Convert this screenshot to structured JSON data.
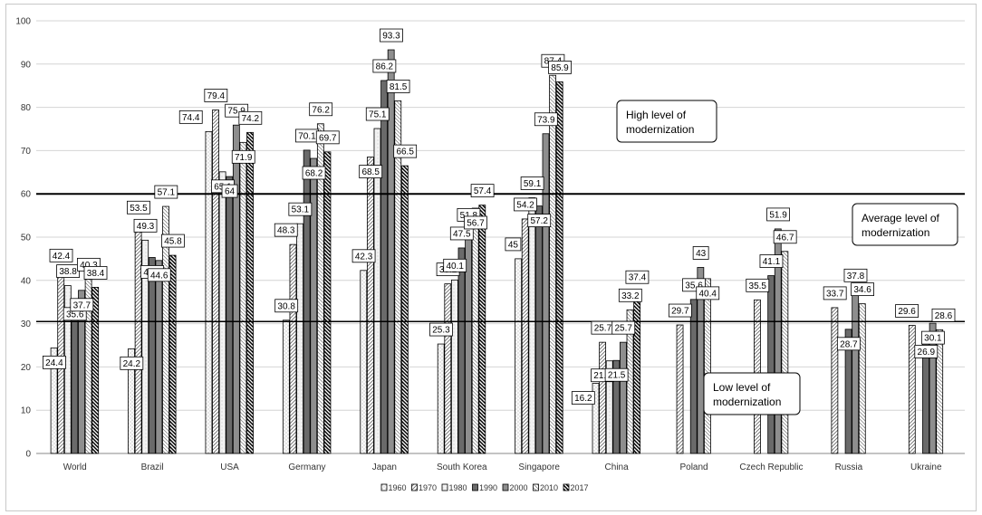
{
  "chart_data": {
    "type": "bar",
    "categories": [
      "World",
      "Brazil",
      "USA",
      "Germany",
      "Japan",
      "South Korea",
      "Singapore",
      "China",
      "Poland",
      "Czech Republic",
      "Russia",
      "Ukraine"
    ],
    "series": [
      {
        "name": "1960",
        "values": [
          24.4,
          24.2,
          74.4,
          30.8,
          42.3,
          25.3,
          45,
          16.2,
          null,
          null,
          null,
          null
        ]
      },
      {
        "name": "1970",
        "values": [
          42.4,
          53.5,
          79.4,
          48.3,
          68.5,
          39.2,
          54.2,
          25.7,
          29.7,
          35.5,
          33.7,
          29.6
        ]
      },
      {
        "name": "1980",
        "values": [
          38.8,
          49.3,
          65.1,
          53.1,
          75.1,
          40.1,
          59.1,
          21.4,
          null,
          null,
          null,
          null
        ]
      },
      {
        "name": "1990",
        "values": [
          35.6,
          45.3,
          64,
          70.1,
          86.2,
          47.5,
          57.2,
          21.5,
          35.6,
          41.1,
          28.7,
          26.9
        ]
      },
      {
        "name": "2000",
        "values": [
          37.7,
          44.6,
          75.9,
          68.2,
          93.3,
          51.8,
          73.9,
          25.7,
          43,
          51.9,
          37.8,
          30.1
        ]
      },
      {
        "name": "2010",
        "values": [
          40.3,
          57.1,
          71.9,
          76.2,
          81.5,
          56.7,
          87.4,
          33.2,
          40.4,
          46.7,
          34.6,
          28.6
        ]
      },
      {
        "name": "2017",
        "values": [
          38.4,
          45.8,
          74.2,
          69.7,
          66.5,
          57.4,
          85.9,
          37.4,
          null,
          null,
          null,
          null
        ]
      }
    ],
    "ylim": [
      0,
      100
    ],
    "yticks": [
      "0",
      "10",
      "20",
      "30",
      "40",
      "50",
      "60",
      "70",
      "80",
      "90",
      "100"
    ],
    "grid": true,
    "legend_position": "bottom",
    "reference_lines": [
      {
        "value": 60,
        "label": "Average level of modernization"
      },
      {
        "value": 30.5,
        "label": "Low level of modernization"
      }
    ],
    "annotations": [
      {
        "text": [
          "High level of",
          "modernization"
        ]
      },
      {
        "text": [
          "Average level of",
          "modernization"
        ]
      },
      {
        "text": [
          "Low level of",
          "modernization"
        ]
      }
    ]
  }
}
